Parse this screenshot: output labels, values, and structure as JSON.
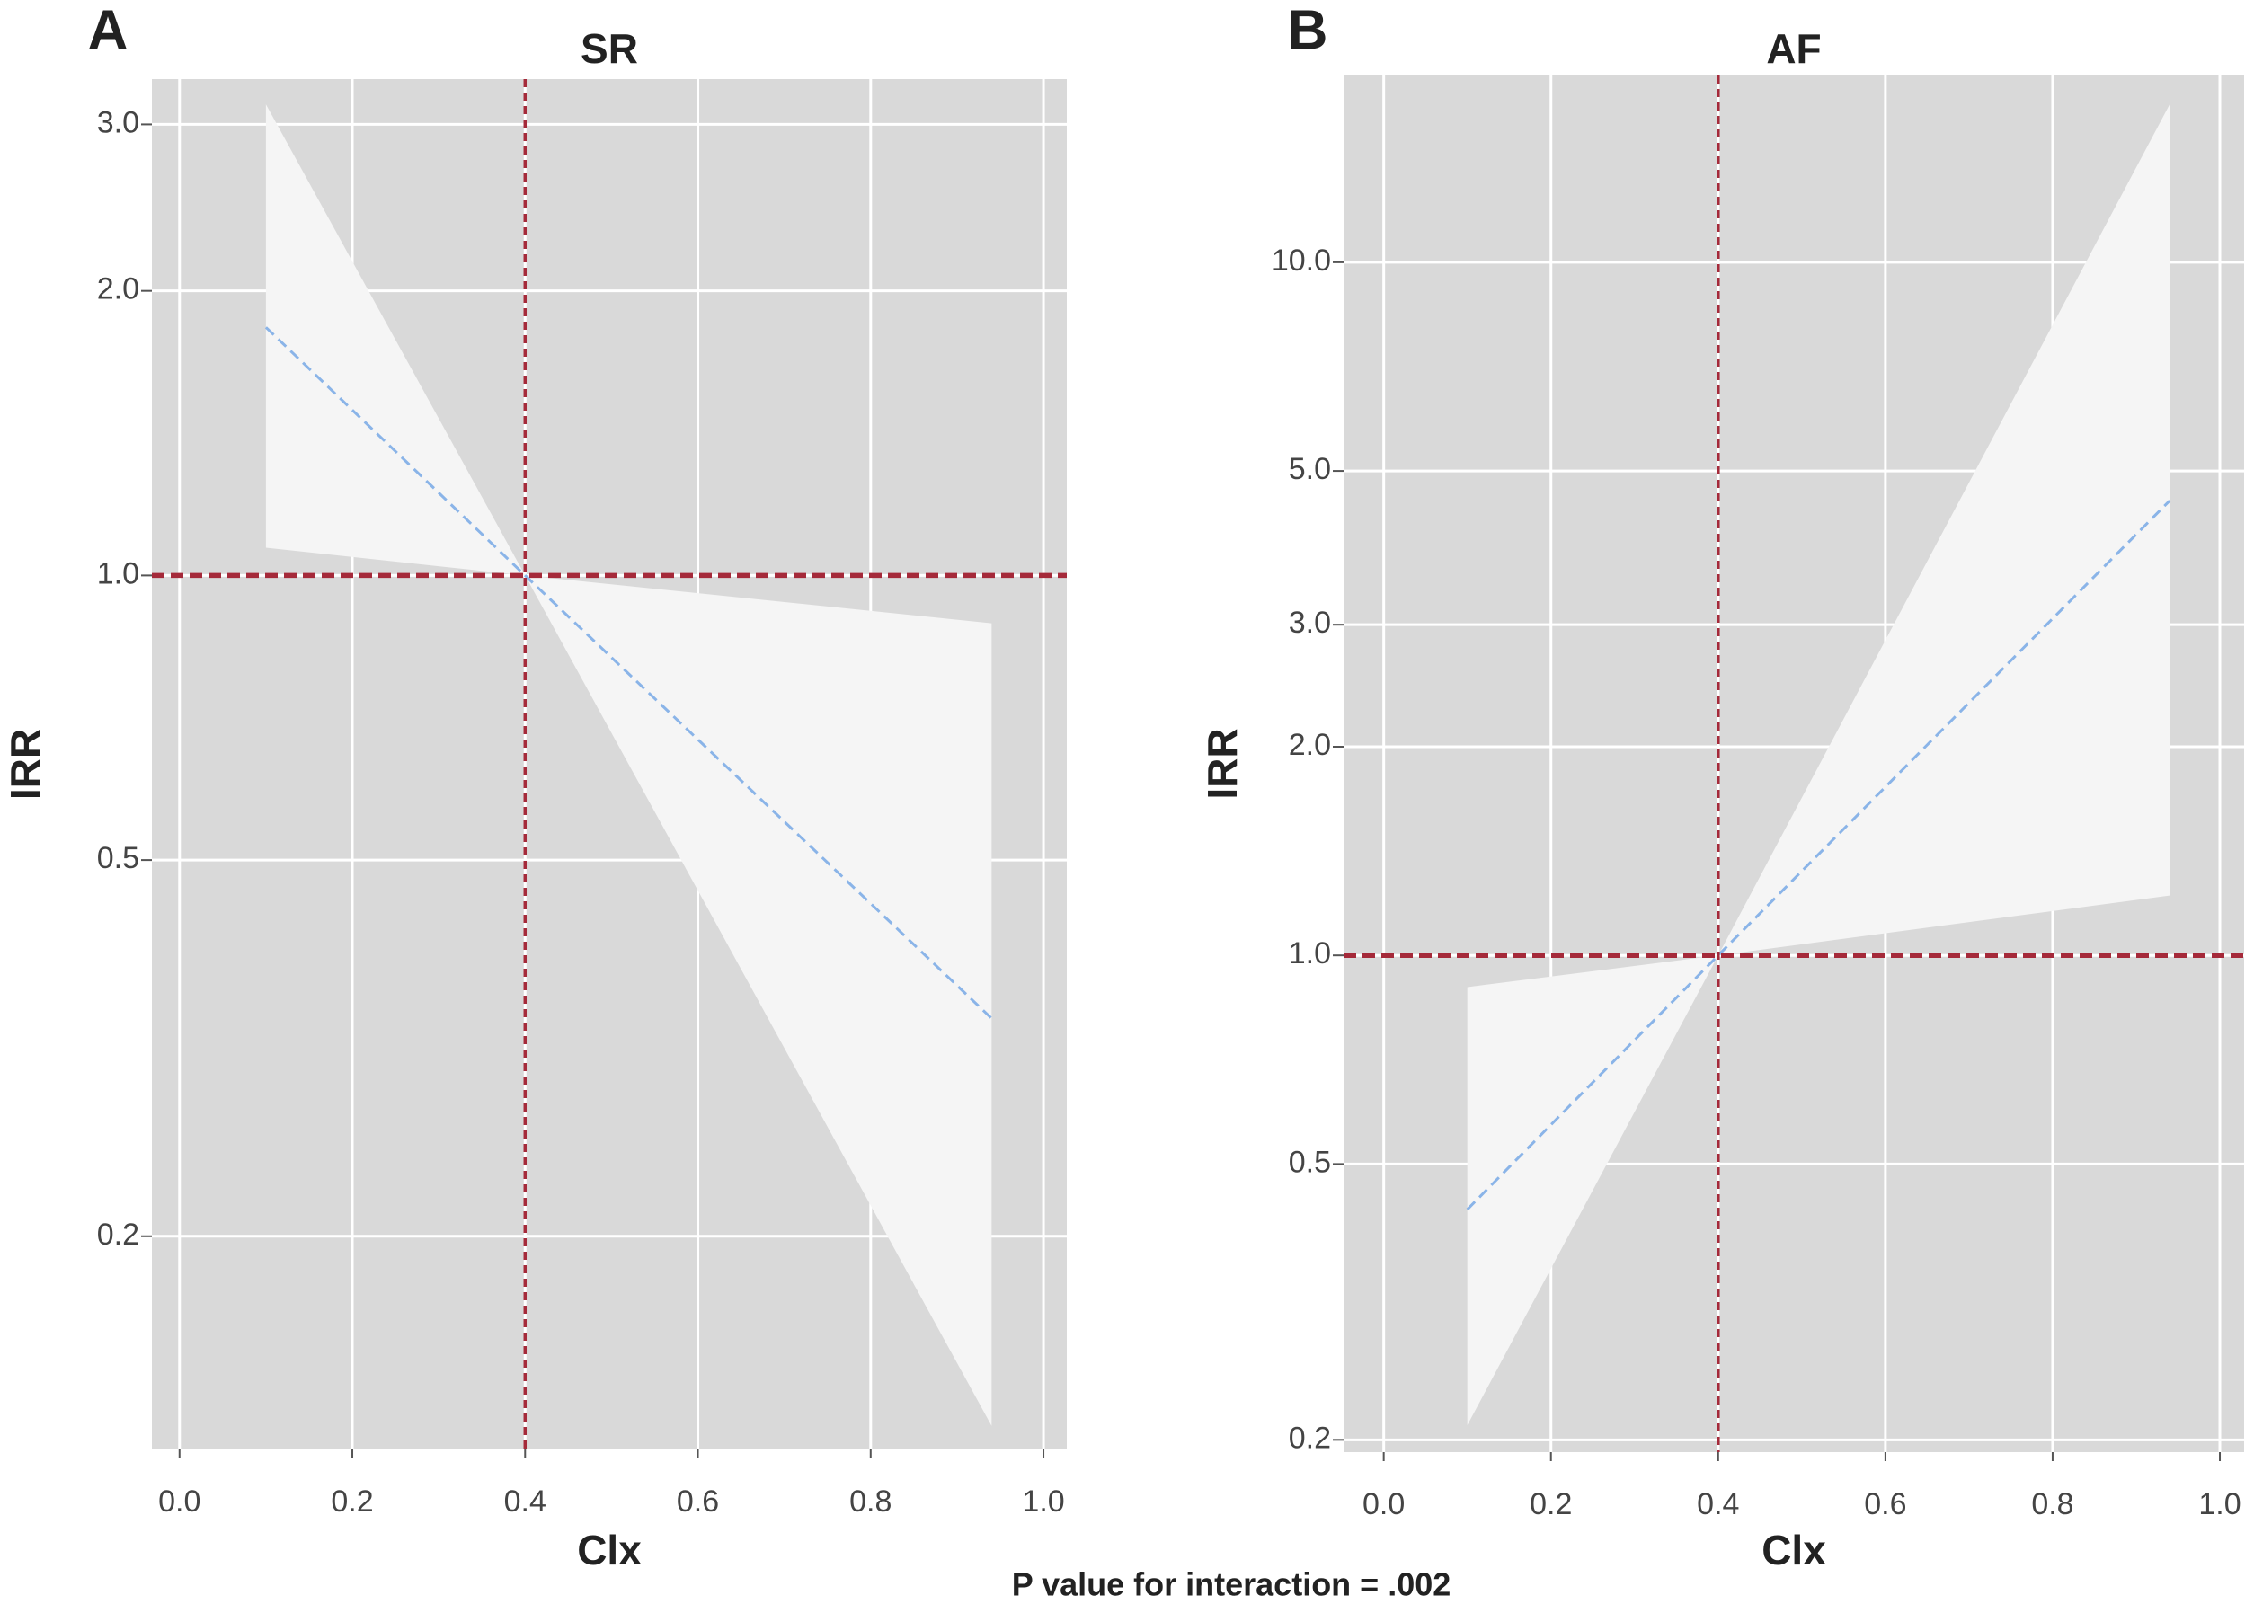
{
  "chart_data": [
    {
      "type": "band-line",
      "panel": "A",
      "title": "SR",
      "xlabel": "Clx",
      "ylabel": "IRR",
      "x": [
        0.1,
        0.4,
        0.94
      ],
      "values": [
        1.83,
        1.0,
        0.34
      ],
      "band": {
        "lower": [
          1.07,
          1.0,
          0.126
        ],
        "upper": [
          3.15,
          1.0,
          0.89
        ]
      },
      "color": "#8ab4e8",
      "band_color": "#f5f5f5",
      "background": "#d9d9d9",
      "ref_color": "#a52a3a",
      "vline": 0.4,
      "hline": 1.0,
      "log_y": true,
      "grid": true,
      "xlim": [
        -0.032,
        1.027
      ],
      "ylim": [
        0.119,
        3.35
      ],
      "xticks": [
        {
          "value": 0,
          "label": "0.0"
        },
        0.2,
        0.4,
        0.6,
        0.8,
        {
          "value": 1,
          "label": "1.0"
        }
      ],
      "yticks": [
        0.2,
        0.5,
        {
          "value": 1,
          "label": "1.0"
        },
        {
          "value": 2,
          "label": "2.0"
        },
        {
          "value": 3,
          "label": "3.0"
        }
      ]
    },
    {
      "type": "band-line",
      "panel": "B",
      "title": "AF",
      "xlabel": "Clx",
      "ylabel": "IRR",
      "x": [
        0.1,
        0.4,
        0.94
      ],
      "values": [
        0.43,
        1.0,
        4.53
      ],
      "band": {
        "lower": [
          0.21,
          1.0,
          1.22
        ],
        "upper": [
          0.9,
          1.0,
          16.9
        ]
      },
      "color": "#8ab4e8",
      "band_color": "#f5f5f5",
      "background": "#d9d9d9",
      "ref_color": "#a52a3a",
      "vline": 0.4,
      "hline": 1.0,
      "log_y": true,
      "grid": true,
      "xlim": [
        -0.048,
        1.029
      ],
      "ylim": [
        0.192,
        18.6
      ],
      "xticks": [
        {
          "value": 0,
          "label": "0.0"
        },
        0.2,
        0.4,
        0.6,
        0.8,
        {
          "value": 1,
          "label": "1.0"
        }
      ],
      "yticks": [
        0.2,
        0.5,
        {
          "value": 1,
          "label": "1.0"
        },
        {
          "value": 2,
          "label": "2.0"
        },
        {
          "value": 3,
          "label": "3.0"
        },
        {
          "value": 5,
          "label": "5.0"
        },
        {
          "value": 10,
          "label": "10.0"
        }
      ]
    }
  ],
  "caption": "P value for interaction = .002"
}
